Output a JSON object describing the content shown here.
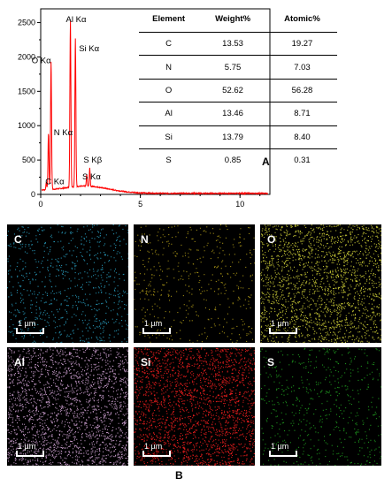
{
  "chart_data": {
    "type": "line",
    "xlim": [
      0,
      11.5
    ],
    "ylim": [
      0,
      2700
    ],
    "xticks": [
      "0",
      "5",
      "10"
    ],
    "yticks": [
      "0",
      "500",
      "1000",
      "1500",
      "2000",
      "2500"
    ],
    "peaks": [
      {
        "label": "C Kα",
        "x": 0.28,
        "y": 110
      },
      {
        "label": "N Kα",
        "x": 0.39,
        "y": 820
      },
      {
        "label": "O Kα",
        "x": 0.52,
        "y": 1860
      },
      {
        "label": "Al Kα",
        "x": 1.49,
        "y": 2420
      },
      {
        "label": "Si Kα",
        "x": 1.74,
        "y": 2160
      },
      {
        "label": "S Kα",
        "x": 2.31,
        "y": 170
      },
      {
        "label": "S Kβ",
        "x": 2.46,
        "y": 270
      }
    ],
    "series_color": "#ff0000",
    "panel_label": "A"
  },
  "table": {
    "headers": [
      "Element",
      "Weight%",
      "Atomic%"
    ],
    "rows": [
      [
        "C",
        "13.53",
        "19.27"
      ],
      [
        "N",
        "5.75",
        "7.03"
      ],
      [
        "O",
        "52.62",
        "56.28"
      ],
      [
        "Al",
        "13.46",
        "8.71"
      ],
      [
        "Si",
        "13.79",
        "8.40"
      ],
      [
        "S",
        "0.85",
        "0.31"
      ]
    ]
  },
  "maps": {
    "panel_label": "B",
    "scale_bar": "1 µm",
    "tiles": [
      {
        "element": "C",
        "color": "#2aa6c9",
        "density": 0.3
      },
      {
        "element": "N",
        "color": "#b8a218",
        "density": 0.18
      },
      {
        "element": "O",
        "color": "#d8d83a",
        "density": 0.75
      },
      {
        "element": "Al",
        "color": "#d8a8dc",
        "density": 0.8
      },
      {
        "element": "Si",
        "color": "#ff2020",
        "density": 0.82
      },
      {
        "element": "S",
        "color": "#22a822",
        "density": 0.22
      }
    ]
  }
}
